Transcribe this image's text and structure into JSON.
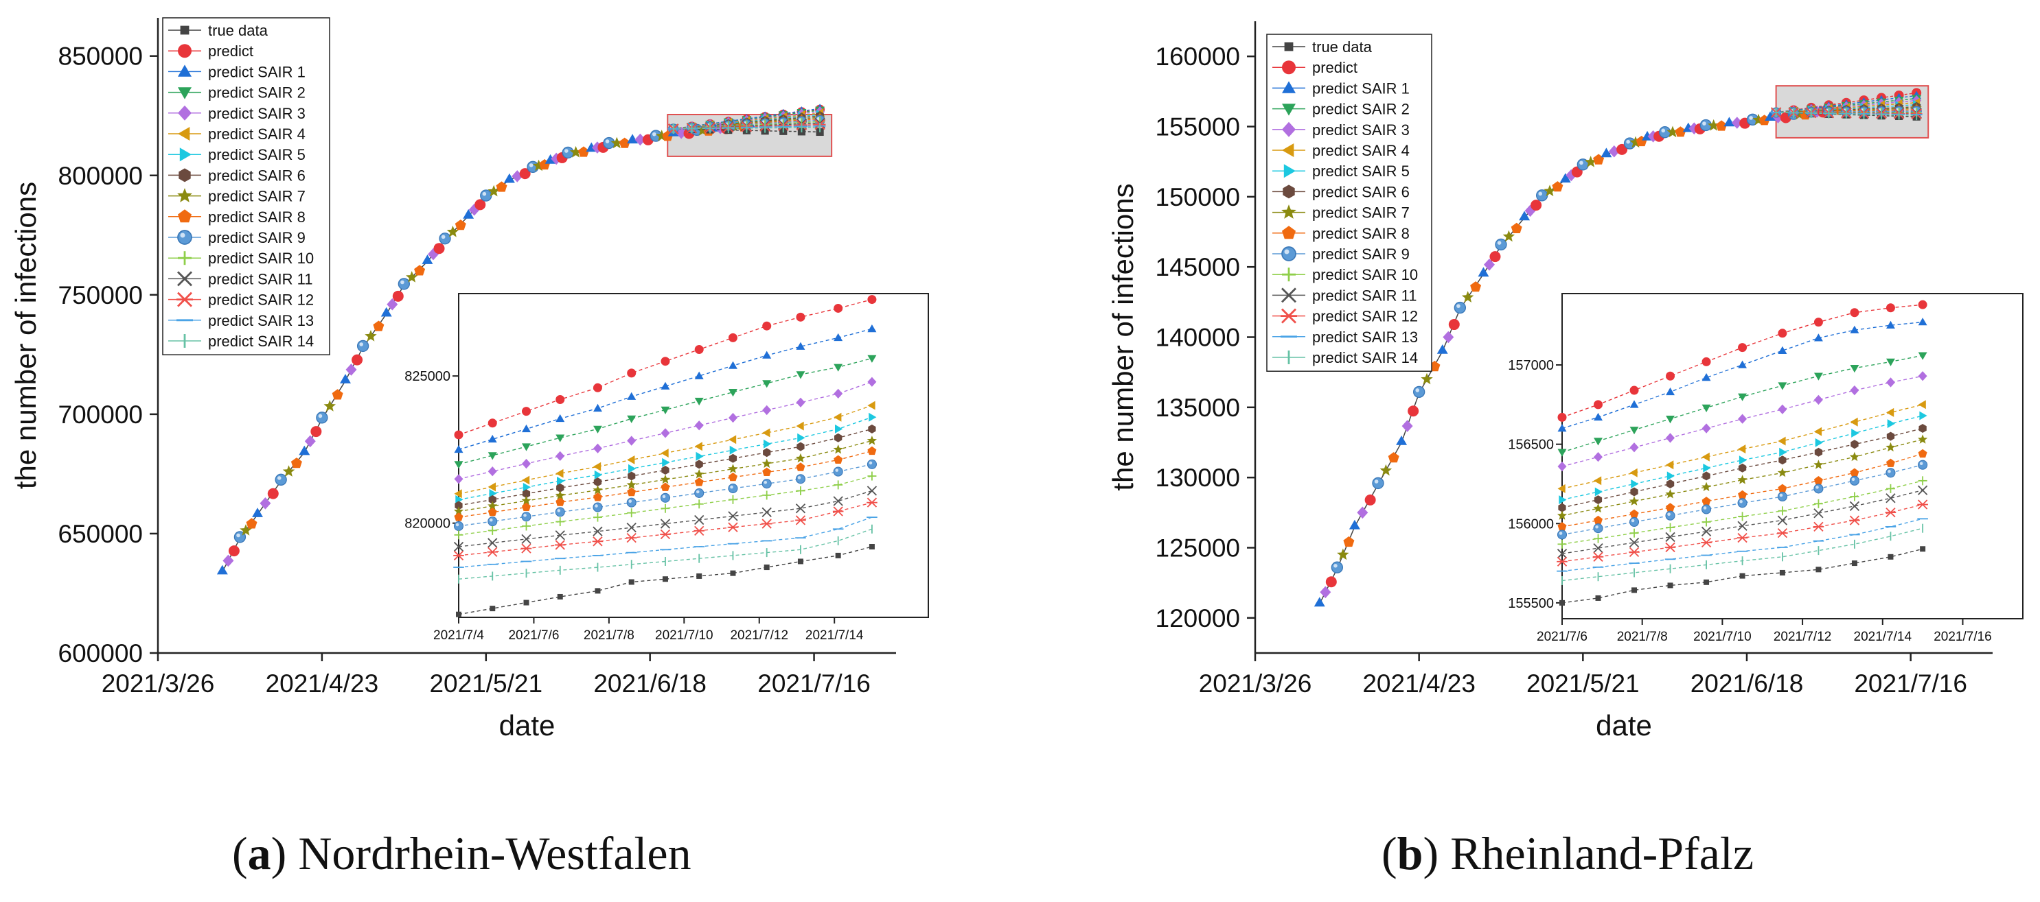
{
  "colors": {
    "true_data": "#444444",
    "predict": "#e8353a",
    "sair1": "#1f6fd6",
    "sair2": "#2ca35a",
    "sair3": "#b16fe0",
    "sair4": "#d89a10",
    "sair5": "#1cc8e0",
    "sair6": "#6b4a3e",
    "sair7": "#8a8a10",
    "sair8": "#f06a10",
    "sair9": "#5b9ad6",
    "sair10": "#8fcf4a",
    "sair11": "#555555",
    "sair12": "#f0504a",
    "sair13": "#4aa3e6",
    "sair14": "#66c2a5",
    "highlight_fill": "#d9d9d9",
    "highlight_stroke": "#e05050"
  },
  "chart_data": [
    {
      "type": "line",
      "panel": "a",
      "caption_letter": "a",
      "caption_title": "Nordrhein-Westfalen",
      "xlabel": "date",
      "ylabel": "the number of infections",
      "x_ticks": [
        "2021/3/26",
        "2021/4/23",
        "2021/5/21",
        "2021/6/18",
        "2021/7/16"
      ],
      "x_range_days": [
        0,
        126
      ],
      "y_ticks": [
        600000,
        650000,
        700000,
        750000,
        800000,
        850000
      ],
      "y_range": [
        600000,
        866000
      ],
      "legend": [
        "true data",
        "predict",
        "predict SAIR 1",
        "predict SAIR 2",
        "predict SAIR 3",
        "predict SAIR 4",
        "predict SAIR 5",
        "predict SAIR 6",
        "predict SAIR 7",
        "predict SAIR 8",
        "predict SAIR 9",
        "predict SAIR 10",
        "predict SAIR 11",
        "predict SAIR 12",
        "predict SAIR 13",
        "predict SAIR 14"
      ],
      "main_curve": {
        "day": [
          11,
          14,
          17,
          21,
          25,
          28,
          32,
          35,
          39,
          42,
          46,
          49,
          53,
          56,
          60,
          64,
          67,
          70,
          74,
          77,
          81,
          85,
          88,
          92,
          95,
          98,
          101
        ],
        "value": [
          634000,
          648000,
          658000,
          672000,
          684000,
          698000,
          714000,
          728000,
          742000,
          754000,
          764000,
          773000,
          783000,
          791000,
          798000,
          803000,
          806000,
          809000,
          811000,
          813000,
          814500,
          816000,
          817500,
          818500,
          819500,
          820500,
          821200
        ]
      },
      "forecast_start_day": 88,
      "forecast_end_day": 113,
      "forecast_end_values": [
        818200,
        827600,
        828000,
        827300,
        826700,
        826100,
        825500,
        824900,
        824300,
        823700,
        823100,
        822500,
        821900,
        821300,
        820700,
        820100
      ],
      "zoom_box": {
        "x_days": [
          87,
          115
        ],
        "y_range": [
          808000,
          825500
        ]
      },
      "inset": {
        "x_ticks": [
          "2021/7/4",
          "2021/7/6",
          "2021/7/8",
          "2021/7/10",
          "2021/7/12",
          "2021/7/14"
        ],
        "x_range": [
          0,
          12.5
        ],
        "y_ticks": [
          820000,
          825000
        ],
        "y_range": [
          816800,
          827800
        ],
        "x": [
          0,
          0.9,
          1.8,
          2.7,
          3.7,
          4.6,
          5.5,
          6.4,
          7.3,
          8.2,
          9.1,
          10.1,
          11
        ],
        "series": [
          {
            "name": "true data",
            "values": [
              816900,
              817100,
              817300,
              817500,
              817700,
              818000,
              818100,
              818200,
              818300,
              818500,
              818700,
              818900,
              819200
            ]
          },
          {
            "name": "predict",
            "values": [
              823000,
              823400,
              823800,
              824200,
              824600,
              825100,
              825500,
              825900,
              826300,
              826700,
              827000,
              827300,
              827600
            ]
          },
          {
            "name": "predict SAIR 1",
            "values": [
              822500,
              822850,
              823200,
              823550,
              823900,
              824300,
              824650,
              825000,
              825350,
              825700,
              826000,
              826300,
              826600
            ]
          },
          {
            "name": "predict SAIR 2",
            "values": [
              822000,
              822300,
              822600,
              822900,
              823200,
              823550,
              823850,
              824150,
              824450,
              824750,
              825050,
              825300,
              825600
            ]
          },
          {
            "name": "predict SAIR 3",
            "values": [
              821500,
              821760,
              822020,
              822280,
              822540,
              822800,
              823060,
              823320,
              823580,
              823840,
              824100,
              824400,
              824800
            ]
          },
          {
            "name": "predict SAIR 4",
            "values": [
              821000,
              821230,
              821460,
              821690,
              821920,
              822150,
              822380,
              822610,
              822840,
              823070,
              823300,
              823600,
              824000
            ]
          },
          {
            "name": "predict SAIR 5",
            "values": [
              820800,
              821010,
              821220,
              821430,
              821640,
              821850,
              822060,
              822270,
              822480,
              822690,
              822900,
              823200,
              823600
            ]
          },
          {
            "name": "predict SAIR 6",
            "values": [
              820600,
              820800,
              821000,
              821200,
              821400,
              821600,
              821800,
              822000,
              822200,
              822400,
              822600,
              822900,
              823200
            ]
          },
          {
            "name": "predict SAIR 7",
            "values": [
              820400,
              820580,
              820760,
              820940,
              821120,
              821300,
              821480,
              821660,
              821840,
              822020,
              822200,
              822500,
              822800
            ]
          },
          {
            "name": "predict SAIR 8",
            "values": [
              820200,
              820370,
              820540,
              820710,
              820880,
              821050,
              821220,
              821390,
              821560,
              821730,
              821900,
              822150,
              822450
            ]
          },
          {
            "name": "predict SAIR 9",
            "values": [
              819900,
              820060,
              820220,
              820380,
              820540,
              820700,
              820860,
              821020,
              821180,
              821340,
              821500,
              821750,
              822000
            ]
          },
          {
            "name": "predict SAIR 10",
            "values": [
              819600,
              819750,
              819900,
              820050,
              820200,
              820350,
              820500,
              820650,
              820800,
              820950,
              821100,
              821300,
              821600
            ]
          },
          {
            "name": "predict SAIR 11",
            "values": [
              819200,
              819330,
              819460,
              819590,
              819720,
              819850,
              819980,
              820110,
              820240,
              820370,
              820500,
              820750,
              821100
            ]
          },
          {
            "name": "predict SAIR 12",
            "values": [
              818900,
              819020,
              819140,
              819260,
              819380,
              819500,
              819620,
              819740,
              819860,
              819980,
              820100,
              820400,
              820700
            ]
          },
          {
            "name": "predict SAIR 13",
            "values": [
              818500,
              818600,
              818700,
              818800,
              818900,
              819000,
              819100,
              819200,
              819300,
              819400,
              819500,
              819800,
              820200
            ]
          },
          {
            "name": "predict SAIR 14",
            "values": [
              818100,
              818200,
              818300,
              818400,
              818500,
              818600,
              818700,
              818800,
              818900,
              819000,
              819100,
              819400,
              819800
            ]
          }
        ]
      }
    },
    {
      "type": "line",
      "panel": "b",
      "caption_letter": "b",
      "caption_title": "Rheinland-Pfalz",
      "xlabel": "date",
      "ylabel": "the number of infections",
      "x_ticks": [
        "2021/3/26",
        "2021/4/23",
        "2021/5/21",
        "2021/6/18",
        "2021/7/16"
      ],
      "x_range_days": [
        0,
        126
      ],
      "y_ticks": [
        120000,
        125000,
        130000,
        135000,
        140000,
        145000,
        150000,
        155000,
        160000
      ],
      "y_range": [
        117500,
        162500
      ],
      "legend": [
        "true data",
        "predict",
        "predict SAIR 1",
        "predict SAIR 2",
        "predict SAIR 3",
        "predict SAIR 4",
        "predict SAIR 5",
        "predict SAIR 6",
        "predict SAIR 7",
        "predict SAIR 8",
        "predict SAIR 9",
        "predict SAIR 10",
        "predict SAIR 11",
        "predict SAIR 12",
        "predict SAIR 13",
        "predict SAIR 14"
      ],
      "main_curve": {
        "day": [
          11,
          14,
          17,
          21,
          25,
          28,
          32,
          35,
          39,
          42,
          46,
          49,
          53,
          56,
          60,
          64,
          67,
          70,
          74,
          77,
          81,
          85,
          88,
          92,
          95,
          98,
          101
        ],
        "value": [
          121000,
          123500,
          126500,
          129500,
          132500,
          136000,
          139000,
          142000,
          144500,
          146500,
          148500,
          150000,
          151200,
          152200,
          153000,
          153700,
          154200,
          154500,
          154800,
          155000,
          155200,
          155400,
          155600,
          155800,
          156000,
          156200,
          156300
        ]
      },
      "forecast_start_day": 89,
      "forecast_end_day": 113,
      "forecast_end_values": [
        155700,
        157400,
        157200,
        157000,
        156850,
        156700,
        156550,
        156400,
        156300,
        156200,
        156100,
        156000,
        155950,
        155900,
        155850,
        155800
      ],
      "zoom_box": {
        "x_days": [
          89,
          115
        ],
        "y_range": [
          154200,
          157900
        ]
      },
      "inset": {
        "x_ticks": [
          "2021/7/6",
          "2021/7/8",
          "2021/7/10",
          "2021/7/12",
          "2021/7/14",
          "2021/7/16"
        ],
        "x_range": [
          0,
          11.5
        ],
        "y_ticks": [
          155500,
          156000,
          156500,
          157000
        ],
        "y_range": [
          155400,
          157450
        ],
        "x": [
          0,
          0.9,
          1.8,
          2.7,
          3.6,
          4.5,
          5.5,
          6.4,
          7.3,
          8.2,
          9
        ],
        "series": [
          {
            "name": "true data",
            "values": [
              155500,
              155530,
              155580,
              155610,
              155630,
              155670,
              155690,
              155710,
              155750,
              155790,
              155840
            ]
          },
          {
            "name": "predict",
            "values": [
              156670,
              156750,
              156840,
              156930,
              157020,
              157110,
              157200,
              157270,
              157330,
              157360,
              157380
            ]
          },
          {
            "name": "predict SAIR 1",
            "values": [
              156600,
              156670,
              156750,
              156830,
              156920,
              157000,
              157090,
              157170,
              157220,
              157250,
              157270
            ]
          },
          {
            "name": "predict SAIR 2",
            "values": [
              156450,
              156520,
              156590,
              156660,
              156730,
              156800,
              156870,
              156930,
              156980,
              157020,
              157060
            ]
          },
          {
            "name": "predict SAIR 3",
            "values": [
              156360,
              156420,
              156480,
              156540,
              156600,
              156660,
              156720,
              156780,
              156840,
              156890,
              156930
            ]
          },
          {
            "name": "predict SAIR 4",
            "values": [
              156220,
              156270,
              156320,
              156370,
              156420,
              156470,
              156520,
              156580,
              156640,
              156700,
              156750
            ]
          },
          {
            "name": "predict SAIR 5",
            "values": [
              156150,
              156200,
              156250,
              156300,
              156350,
              156400,
              156450,
              156510,
              156570,
              156630,
              156680
            ]
          },
          {
            "name": "predict SAIR 6",
            "values": [
              156100,
              156150,
              156200,
              156250,
              156300,
              156350,
              156400,
              156450,
              156500,
              156550,
              156600
            ]
          },
          {
            "name": "predict SAIR 7",
            "values": [
              156050,
              156095,
              156140,
              156185,
              156230,
              156275,
              156320,
              156370,
              156420,
              156480,
              156530
            ]
          },
          {
            "name": "predict SAIR 8",
            "values": [
              155980,
              156020,
              156060,
              156100,
              156140,
              156180,
              156220,
              156270,
              156320,
              156380,
              156440
            ]
          },
          {
            "name": "predict SAIR 9",
            "values": [
              155930,
              155970,
              156010,
              156050,
              156090,
              156130,
              156170,
              156220,
              156270,
              156320,
              156370
            ]
          },
          {
            "name": "predict SAIR 10",
            "values": [
              155870,
              155905,
              155940,
              155975,
              156010,
              156045,
              156080,
              156125,
              156170,
              156220,
              156270
            ]
          },
          {
            "name": "predict SAIR 11",
            "values": [
              155810,
              155845,
              155880,
              155915,
              155950,
              155985,
              156020,
              156065,
              156110,
              156160,
              156210
            ]
          },
          {
            "name": "predict SAIR 12",
            "values": [
              155760,
              155790,
              155820,
              155850,
              155880,
              155910,
              155940,
              155980,
              156020,
              156070,
              156120
            ]
          },
          {
            "name": "predict SAIR 13",
            "values": [
              155700,
              155725,
              155750,
              155775,
              155800,
              155825,
              155850,
              155890,
              155930,
              155980,
              156030
            ]
          },
          {
            "name": "predict SAIR 14",
            "values": [
              155640,
              155665,
              155690,
              155715,
              155740,
              155765,
              155790,
              155830,
              155870,
              155920,
              155970
            ]
          }
        ]
      }
    }
  ]
}
